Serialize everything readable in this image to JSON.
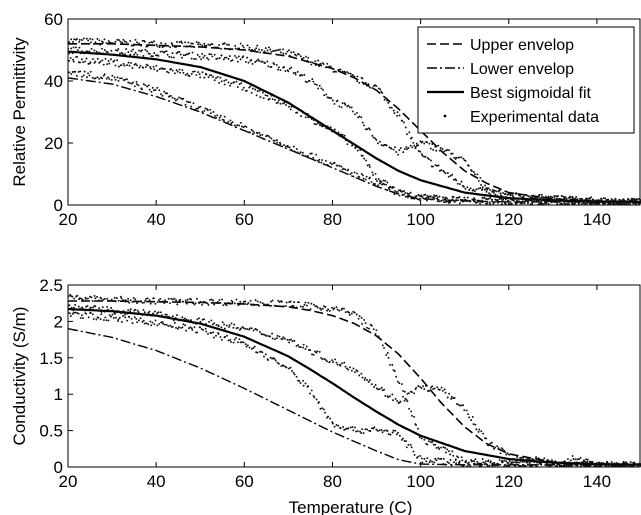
{
  "chart_data": [
    {
      "type": "line",
      "ylabel": "Relative Permittivity",
      "xlabel": "",
      "xlim": [
        20,
        150
      ],
      "ylim": [
        0,
        60
      ],
      "xticks": [
        20,
        40,
        60,
        80,
        100,
        120,
        140
      ],
      "yticks": [
        0,
        20,
        40,
        60
      ],
      "legend": {
        "placement": "top-right",
        "entries": [
          "Upper envelop",
          "Lower envelop",
          "Best sigmoidal fit",
          "Experimental data"
        ]
      },
      "series": [
        {
          "name": "Upper envelop",
          "style": "dashed",
          "x": [
            20,
            30,
            40,
            50,
            60,
            70,
            75,
            80,
            85,
            90,
            95,
            100,
            105,
            110,
            115,
            120,
            130,
            140,
            150
          ],
          "y": [
            52,
            52,
            51.5,
            51,
            50,
            48,
            46,
            44,
            41,
            37,
            31,
            24,
            17,
            11,
            7,
            4,
            2,
            1.2,
            1
          ]
        },
        {
          "name": "Lower envelop",
          "style": "dashdot",
          "x": [
            20,
            30,
            40,
            50,
            60,
            70,
            80,
            85,
            90,
            95,
            100,
            110,
            120,
            130,
            140,
            150
          ],
          "y": [
            41,
            39,
            35,
            30,
            24,
            18,
            12,
            9,
            6,
            3.5,
            2,
            1.3,
            1,
            1,
            1,
            1
          ]
        },
        {
          "name": "Best sigmoidal fit",
          "style": "solid",
          "x": [
            20,
            30,
            40,
            50,
            60,
            70,
            75,
            80,
            85,
            90,
            95,
            100,
            110,
            120,
            130,
            140,
            150
          ],
          "y": [
            49.5,
            48.5,
            47,
            44.5,
            40,
            33,
            28.5,
            24,
            19.5,
            15,
            11,
            8,
            4,
            2.2,
            1.5,
            1.1,
            1
          ]
        },
        {
          "name": "Experimental data",
          "style": "points",
          "curves": [
            {
              "x": [
                20,
                30,
                40,
                50,
                60,
                70,
                80,
                90,
                95,
                100,
                110,
                120,
                130,
                140,
                150
              ],
              "y": [
                53,
                52.5,
                52,
                51.5,
                51,
                49,
                44,
                38,
                29,
                16,
                6,
                3,
                2,
                1.4,
                1
              ]
            },
            {
              "x": [
                20,
                30,
                40,
                50,
                60,
                70,
                75,
                80,
                85,
                90,
                95,
                100,
                105,
                110,
                115,
                120,
                130,
                140,
                150
              ],
              "y": [
                50,
                49.5,
                49,
                48,
                47,
                44,
                40,
                34,
                30,
                21,
                17,
                20,
                18,
                14,
                5,
                3,
                2,
                1.3,
                1
              ]
            },
            {
              "x": [
                20,
                30,
                40,
                50,
                60,
                70,
                80,
                85,
                90,
                95,
                100,
                110,
                120,
                130,
                140,
                150
              ],
              "y": [
                47,
                46,
                44,
                42,
                38,
                32,
                24,
                19,
                9,
                4,
                2,
                1.5,
                1.2,
                1.1,
                1,
                1
              ]
            },
            {
              "x": [
                20,
                30,
                40,
                50,
                60,
                70,
                80,
                85,
                90,
                95,
                100,
                110,
                120,
                130,
                140,
                150
              ],
              "y": [
                43,
                41,
                37,
                31,
                25,
                19,
                13,
                10,
                7,
                4,
                2.5,
                1.5,
                1.2,
                1.1,
                1,
                1
              ]
            }
          ]
        }
      ]
    },
    {
      "type": "line",
      "ylabel": "Conductivity (S/m)",
      "xlabel": "Temperature (C)",
      "xlim": [
        20,
        150
      ],
      "ylim": [
        0,
        2.5
      ],
      "xticks": [
        20,
        40,
        60,
        80,
        100,
        120,
        140
      ],
      "yticks": [
        0,
        0.5,
        1,
        1.5,
        2,
        2.5
      ],
      "series": [
        {
          "name": "Upper envelop",
          "style": "dashed",
          "x": [
            20,
            30,
            40,
            50,
            60,
            70,
            75,
            80,
            85,
            90,
            95,
            100,
            105,
            110,
            115,
            120,
            130,
            140,
            150
          ],
          "y": [
            2.28,
            2.28,
            2.27,
            2.26,
            2.24,
            2.2,
            2.15,
            2.08,
            1.97,
            1.8,
            1.55,
            1.22,
            0.86,
            0.55,
            0.32,
            0.18,
            0.07,
            0.04,
            0.03
          ]
        },
        {
          "name": "Lower envelop",
          "style": "dashdot",
          "x": [
            20,
            30,
            40,
            50,
            60,
            70,
            80,
            90,
            95,
            100,
            110,
            120,
            130,
            140,
            150
          ],
          "y": [
            1.9,
            1.78,
            1.6,
            1.36,
            1.08,
            0.78,
            0.48,
            0.22,
            0.1,
            0.04,
            0.03,
            0.03,
            0.03,
            0.03,
            0.03
          ]
        },
        {
          "name": "Best sigmoidal fit",
          "style": "solid",
          "x": [
            20,
            30,
            40,
            50,
            60,
            70,
            75,
            80,
            85,
            90,
            95,
            100,
            110,
            120,
            130,
            140,
            150
          ],
          "y": [
            2.17,
            2.14,
            2.08,
            1.97,
            1.79,
            1.52,
            1.34,
            1.15,
            0.95,
            0.76,
            0.58,
            0.43,
            0.22,
            0.11,
            0.06,
            0.04,
            0.03
          ]
        },
        {
          "name": "Experimental data",
          "style": "points",
          "curves": [
            {
              "x": [
                20,
                30,
                40,
                50,
                60,
                70,
                80,
                85,
                90,
                95,
                100,
                110,
                120,
                130,
                140,
                150
              ],
              "y": [
                2.33,
                2.3,
                2.28,
                2.27,
                2.26,
                2.24,
                2.18,
                2.1,
                1.85,
                1.2,
                0.4,
                0.08,
                0.05,
                0.04,
                0.03,
                0.03
              ]
            },
            {
              "x": [
                20,
                30,
                40,
                50,
                60,
                70,
                75,
                80,
                85,
                90,
                95,
                100,
                105,
                110,
                115,
                120,
                130,
                135,
                140,
                150
              ],
              "y": [
                2.2,
                2.15,
                2.1,
                2.0,
                1.9,
                1.75,
                1.6,
                1.45,
                1.35,
                1.1,
                0.9,
                1.1,
                1.05,
                0.8,
                0.35,
                0.15,
                0.06,
                0.12,
                0.04,
                0.03
              ]
            },
            {
              "x": [
                20,
                30,
                40,
                50,
                60,
                70,
                75,
                80,
                85,
                90,
                95,
                100,
                110,
                120,
                130,
                140,
                150
              ],
              "y": [
                2.1,
                2.05,
                1.98,
                1.88,
                1.7,
                1.35,
                1.05,
                0.6,
                0.5,
                0.52,
                0.45,
                0.1,
                0.05,
                0.04,
                0.03,
                0.03,
                0.03
              ]
            }
          ]
        }
      ]
    }
  ]
}
